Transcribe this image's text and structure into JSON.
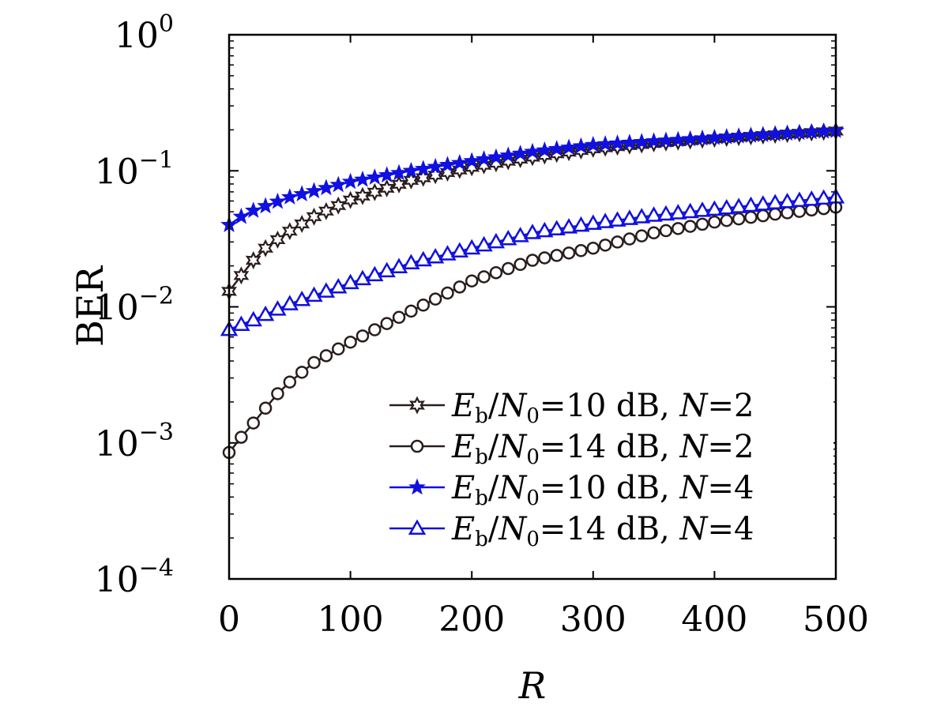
{
  "chart_data": {
    "type": "line",
    "title": "",
    "xlabel": "R",
    "ylabel": "BER",
    "xlim": [
      0,
      500
    ],
    "ylim": [
      0.0001,
      1
    ],
    "yscale": "log",
    "grid": false,
    "legend_position": "bottom-right",
    "x_ticks": [
      {
        "value": 0,
        "label": "0"
      },
      {
        "value": 100,
        "label": "100"
      },
      {
        "value": 200,
        "label": "200"
      },
      {
        "value": 300,
        "label": "300"
      },
      {
        "value": 400,
        "label": "400"
      },
      {
        "value": 500,
        "label": "500"
      }
    ],
    "y_ticks": [
      {
        "value": 1,
        "base": "10",
        "exp": "0"
      },
      {
        "value": 0.1,
        "base": "10",
        "exp": "−1"
      },
      {
        "value": 0.01,
        "base": "10",
        "exp": "−2"
      },
      {
        "value": 0.001,
        "base": "10",
        "exp": "−3"
      },
      {
        "value": 0.0001,
        "base": "10",
        "exp": "−4"
      }
    ],
    "x": [
      0,
      10,
      20,
      30,
      40,
      50,
      60,
      70,
      80,
      90,
      100,
      110,
      120,
      130,
      140,
      150,
      160,
      170,
      180,
      190,
      200,
      210,
      220,
      230,
      240,
      250,
      260,
      270,
      280,
      290,
      300,
      310,
      320,
      330,
      340,
      350,
      360,
      370,
      380,
      390,
      400,
      410,
      420,
      430,
      440,
      450,
      460,
      470,
      480,
      490,
      500
    ],
    "series": [
      {
        "legend": {
          "var1": "E",
          "sub1": "b",
          "slash": "/",
          "var2": "N",
          "sub2": "0",
          "eq1": "=",
          "value": "10 dB, ",
          "var3": "N",
          "eq2": "=",
          "n": "2"
        },
        "color": "#2b1d1d",
        "marker": "hexagram",
        "anchors": [
          [
            0,
            0.013
          ],
          [
            10,
            0.017
          ],
          [
            20,
            0.022
          ],
          [
            30,
            0.027
          ],
          [
            50,
            0.036
          ],
          [
            70,
            0.046
          ],
          [
            100,
            0.061
          ],
          [
            150,
            0.085
          ],
          [
            200,
            0.106
          ],
          [
            250,
            0.126
          ],
          [
            300,
            0.145
          ],
          [
            350,
            0.159
          ],
          [
            400,
            0.172
          ],
          [
            450,
            0.184
          ],
          [
            500,
            0.196
          ]
        ]
      },
      {
        "legend": {
          "var1": "E",
          "sub1": "b",
          "slash": "/",
          "var2": "N",
          "sub2": "0",
          "eq1": "=",
          "value": "14 dB, ",
          "var3": "N",
          "eq2": "=",
          "n": "2"
        },
        "color": "#2b1d1d",
        "marker": "circle",
        "anchors": [
          [
            0,
            0.00085
          ],
          [
            10,
            0.0011
          ],
          [
            20,
            0.0014
          ],
          [
            30,
            0.0018
          ],
          [
            40,
            0.0023
          ],
          [
            50,
            0.0028
          ],
          [
            70,
            0.0039
          ],
          [
            100,
            0.0055
          ],
          [
            150,
            0.0093
          ],
          [
            200,
            0.0155
          ],
          [
            250,
            0.022
          ],
          [
            300,
            0.027
          ],
          [
            350,
            0.035
          ],
          [
            400,
            0.042
          ],
          [
            450,
            0.048
          ],
          [
            500,
            0.054
          ]
        ]
      },
      {
        "legend": {
          "var1": "E",
          "sub1": "b",
          "slash": "/",
          "var2": "N",
          "sub2": "0",
          "eq1": "=",
          "value": "10 dB, ",
          "var3": "N",
          "eq2": "=",
          "n": "4"
        },
        "color": "#1010e0",
        "marker": "star",
        "anchors": [
          [
            0,
            0.04
          ],
          [
            10,
            0.046
          ],
          [
            20,
            0.051
          ],
          [
            50,
            0.064
          ],
          [
            100,
            0.083
          ],
          [
            150,
            0.1
          ],
          [
            200,
            0.118
          ],
          [
            250,
            0.138
          ],
          [
            300,
            0.155
          ],
          [
            350,
            0.165
          ],
          [
            400,
            0.175
          ],
          [
            450,
            0.186
          ],
          [
            500,
            0.197
          ]
        ]
      },
      {
        "legend": {
          "var1": "E",
          "sub1": "b",
          "slash": "/",
          "var2": "N",
          "sub2": "0",
          "eq1": "=",
          "value": "14 dB, ",
          "var3": "N",
          "eq2": "=",
          "n": "4"
        },
        "color": "#1010e0",
        "marker": "triangle",
        "anchors": [
          [
            0,
            0.0068
          ],
          [
            10,
            0.0074
          ],
          [
            20,
            0.008
          ],
          [
            50,
            0.0105
          ],
          [
            100,
            0.015
          ],
          [
            150,
            0.021
          ],
          [
            200,
            0.027
          ],
          [
            250,
            0.035
          ],
          [
            300,
            0.041
          ],
          [
            350,
            0.047
          ],
          [
            400,
            0.052
          ],
          [
            450,
            0.058
          ],
          [
            500,
            0.064
          ]
        ]
      }
    ]
  }
}
